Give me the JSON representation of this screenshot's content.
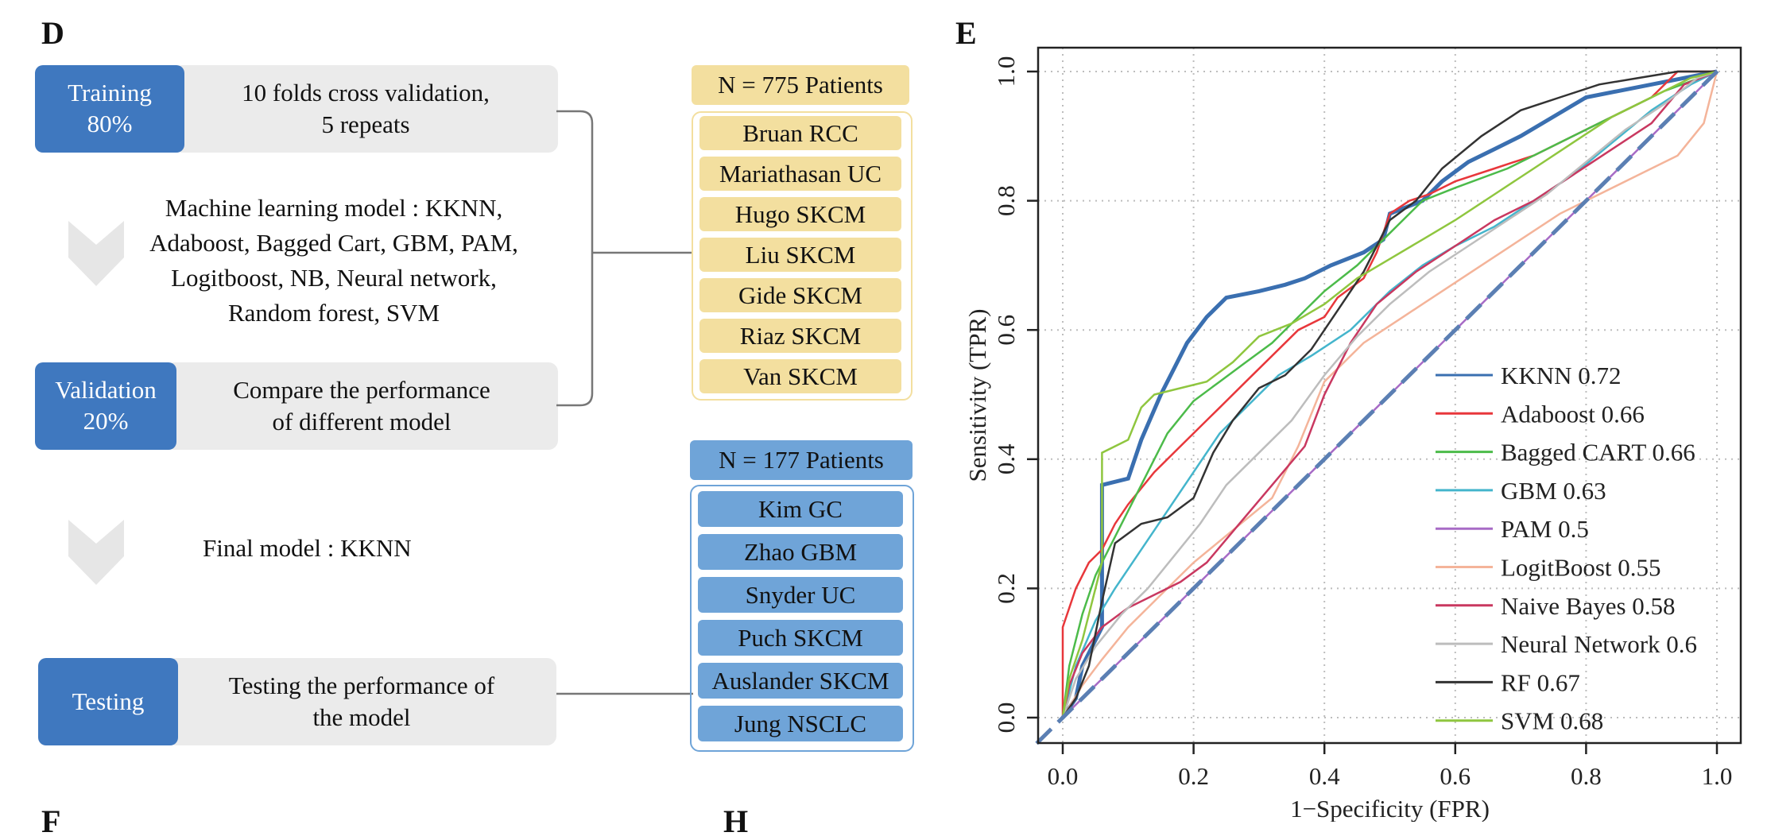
{
  "panel_d": {
    "letter": "D",
    "training": {
      "tag": "Training\n80%",
      "desc": "10 folds cross validation,\n5 repeats"
    },
    "models_text": "Machine learning model : KKNN,\nAdaboost, Bagged Cart, GBM, PAM,\nLogitboost, NB, Neural network,\nRandom forest, SVM",
    "validation": {
      "tag": "Validation\n20%",
      "desc": "Compare the performance\nof different model"
    },
    "final_model": "Final model : KKNN",
    "testing": {
      "tag": "Testing",
      "desc": "Testing the performance of\nthe model"
    },
    "train_cohort": {
      "header": "N = 775 Patients",
      "items": [
        "Bruan RCC",
        "Mariathasan UC",
        "Hugo SKCM",
        "Liu SKCM",
        "Gide SKCM",
        "Riaz SKCM",
        "Van SKCM"
      ]
    },
    "test_cohort": {
      "header": "N = 177 Patients",
      "items": [
        "Kim GC",
        "Zhao GBM",
        "Snyder UC",
        "Puch SKCM",
        "Auslander SKCM",
        "Jung NSCLC"
      ]
    }
  },
  "panel_e": {
    "letter": "E"
  },
  "partial_letters": {
    "f": "F",
    "h": "H"
  },
  "chart_data": {
    "type": "line",
    "xlabel": "1−Specificity (FPR)",
    "ylabel": "Sensitivity (TPR)",
    "xlim": [
      0.0,
      1.0
    ],
    "ylim": [
      0.0,
      1.0
    ],
    "xticks": [
      "0.0",
      "0.2",
      "0.4",
      "0.6",
      "0.8",
      "1.0"
    ],
    "yticks": [
      "0.0",
      "0.2",
      "0.4",
      "0.6",
      "0.8",
      "1.0"
    ],
    "grid": true,
    "legend_position": "bottom-right",
    "reference_line": {
      "x": [
        0,
        1
      ],
      "y": [
        0,
        1
      ],
      "color": "#5b7fb3",
      "style": "dashed"
    },
    "series": [
      {
        "name": "KKNN 0.72",
        "color": "#3a6fb0",
        "x": [
          0,
          0.02,
          0.03,
          0.05,
          0.06,
          0.06,
          0.1,
          0.12,
          0.15,
          0.17,
          0.19,
          0.22,
          0.25,
          0.3,
          0.34,
          0.37,
          0.41,
          0.46,
          0.49,
          0.5,
          0.55,
          0.58,
          0.62,
          0.66,
          0.7,
          0.75,
          0.8,
          0.85,
          0.9,
          1.0
        ],
        "y": [
          0,
          0.03,
          0.08,
          0.12,
          0.14,
          0.36,
          0.37,
          0.43,
          0.5,
          0.54,
          0.58,
          0.62,
          0.65,
          0.66,
          0.67,
          0.68,
          0.7,
          0.72,
          0.74,
          0.78,
          0.8,
          0.83,
          0.86,
          0.88,
          0.9,
          0.93,
          0.96,
          0.97,
          0.98,
          1.0
        ]
      },
      {
        "name": "Adaboost 0.66",
        "color": "#e8373b",
        "x": [
          0,
          0.0,
          0.02,
          0.04,
          0.06,
          0.08,
          0.1,
          0.14,
          0.18,
          0.21,
          0.24,
          0.28,
          0.32,
          0.36,
          0.4,
          0.42,
          0.46,
          0.48,
          0.5,
          0.53,
          0.56,
          0.6,
          0.66,
          0.72,
          0.78,
          0.84,
          0.9,
          0.94,
          1.0
        ],
        "y": [
          0,
          0.14,
          0.2,
          0.24,
          0.26,
          0.3,
          0.33,
          0.38,
          0.42,
          0.45,
          0.48,
          0.52,
          0.56,
          0.6,
          0.62,
          0.65,
          0.68,
          0.72,
          0.78,
          0.8,
          0.81,
          0.83,
          0.85,
          0.87,
          0.9,
          0.93,
          0.96,
          1.0,
          1.0
        ]
      },
      {
        "name": "Bagged CART 0.66",
        "color": "#4cbb4a",
        "x": [
          0,
          0.01,
          0.03,
          0.05,
          0.07,
          0.1,
          0.13,
          0.16,
          0.2,
          0.24,
          0.28,
          0.32,
          0.36,
          0.4,
          0.45,
          0.5,
          0.55,
          0.6,
          0.68,
          0.76,
          0.84,
          0.92,
          1.0
        ],
        "y": [
          0,
          0.08,
          0.16,
          0.22,
          0.26,
          0.32,
          0.38,
          0.44,
          0.49,
          0.52,
          0.55,
          0.58,
          0.62,
          0.66,
          0.7,
          0.75,
          0.8,
          0.82,
          0.85,
          0.89,
          0.93,
          0.97,
          1.0
        ]
      },
      {
        "name": "GBM 0.63",
        "color": "#44b5cc",
        "x": [
          0,
          0.02,
          0.05,
          0.08,
          0.12,
          0.16,
          0.2,
          0.24,
          0.28,
          0.33,
          0.38,
          0.44,
          0.5,
          0.55,
          0.6,
          0.66,
          0.72,
          0.78,
          0.84,
          0.9,
          0.96,
          1.0
        ],
        "y": [
          0,
          0.08,
          0.15,
          0.2,
          0.26,
          0.32,
          0.38,
          0.44,
          0.48,
          0.53,
          0.56,
          0.6,
          0.66,
          0.7,
          0.73,
          0.76,
          0.8,
          0.84,
          0.89,
          0.94,
          0.98,
          1.0
        ]
      },
      {
        "name": "PAM 0.5",
        "color": "#a76bc6",
        "x": [
          0,
          1.0
        ],
        "y": [
          0,
          1.0
        ]
      },
      {
        "name": "LogitBoost 0.55",
        "color": "#f4b49a",
        "x": [
          0,
          0.03,
          0.06,
          0.1,
          0.15,
          0.2,
          0.26,
          0.32,
          0.36,
          0.4,
          0.46,
          0.52,
          0.58,
          0.64,
          0.7,
          0.76,
          0.82,
          0.88,
          0.94,
          0.98,
          1.0
        ],
        "y": [
          0,
          0.05,
          0.09,
          0.14,
          0.19,
          0.24,
          0.29,
          0.34,
          0.42,
          0.52,
          0.58,
          0.62,
          0.66,
          0.7,
          0.74,
          0.78,
          0.81,
          0.84,
          0.87,
          0.92,
          1.0
        ]
      },
      {
        "name": "Naive Bayes 0.58",
        "color": "#c93860",
        "x": [
          0,
          0.01,
          0.03,
          0.06,
          0.1,
          0.14,
          0.18,
          0.22,
          0.27,
          0.32,
          0.37,
          0.4,
          0.44,
          0.48,
          0.54,
          0.6,
          0.66,
          0.72,
          0.78,
          0.84,
          0.9,
          0.95,
          1.0
        ],
        "y": [
          0,
          0.05,
          0.1,
          0.14,
          0.17,
          0.19,
          0.21,
          0.24,
          0.3,
          0.36,
          0.42,
          0.5,
          0.58,
          0.64,
          0.69,
          0.73,
          0.77,
          0.8,
          0.84,
          0.88,
          0.92,
          0.98,
          1.0
        ]
      },
      {
        "name": "Neural Network 0.6",
        "color": "#bdbdbd",
        "x": [
          0,
          0.02,
          0.05,
          0.09,
          0.13,
          0.17,
          0.21,
          0.25,
          0.3,
          0.35,
          0.4,
          0.45,
          0.5,
          0.56,
          0.62,
          0.68,
          0.74,
          0.8,
          0.86,
          0.92,
          0.97,
          1.0
        ],
        "y": [
          0,
          0.06,
          0.11,
          0.16,
          0.2,
          0.25,
          0.3,
          0.36,
          0.41,
          0.46,
          0.53,
          0.59,
          0.64,
          0.69,
          0.73,
          0.77,
          0.81,
          0.86,
          0.91,
          0.95,
          0.99,
          1.0
        ]
      },
      {
        "name": "RF 0.67",
        "color": "#333333",
        "x": [
          0,
          0.02,
          0.04,
          0.06,
          0.08,
          0.12,
          0.16,
          0.2,
          0.23,
          0.26,
          0.3,
          0.34,
          0.38,
          0.42,
          0.46,
          0.5,
          0.54,
          0.58,
          0.64,
          0.7,
          0.76,
          0.82,
          0.88,
          0.94,
          1.0
        ],
        "y": [
          0,
          0.03,
          0.08,
          0.18,
          0.27,
          0.3,
          0.31,
          0.34,
          0.41,
          0.46,
          0.51,
          0.53,
          0.57,
          0.63,
          0.69,
          0.77,
          0.8,
          0.85,
          0.9,
          0.94,
          0.96,
          0.98,
          0.99,
          1.0,
          1.0
        ]
      },
      {
        "name": "SVM 0.68",
        "color": "#8fc63f",
        "x": [
          0,
          0.01,
          0.03,
          0.05,
          0.06,
          0.06,
          0.1,
          0.12,
          0.14,
          0.18,
          0.22,
          0.26,
          0.3,
          0.35,
          0.4,
          0.45,
          0.5,
          0.55,
          0.6,
          0.66,
          0.72,
          0.78,
          0.84,
          0.9,
          0.96,
          1.0
        ],
        "y": [
          0,
          0.06,
          0.12,
          0.2,
          0.24,
          0.41,
          0.43,
          0.48,
          0.5,
          0.51,
          0.52,
          0.55,
          0.59,
          0.61,
          0.64,
          0.68,
          0.71,
          0.74,
          0.77,
          0.81,
          0.85,
          0.89,
          0.93,
          0.96,
          0.99,
          1.0
        ]
      }
    ]
  }
}
